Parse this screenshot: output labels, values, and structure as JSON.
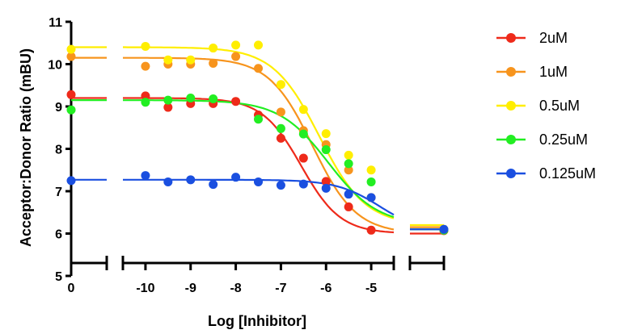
{
  "chart_data": {
    "type": "scatter",
    "xlabel": "Log [Inhibitor]",
    "ylabel": "Acceptor:Donor Ratio (mBU)",
    "ylim": [
      5,
      11
    ],
    "y_ticks": [
      5,
      6,
      7,
      8,
      9,
      10,
      11
    ],
    "x_segments": [
      {
        "xlim": [
          0,
          1
        ],
        "ticks": [
          0
        ],
        "tick_labels": [
          "0"
        ]
      },
      {
        "xlim": [
          -10.5,
          -4.5
        ],
        "ticks": [
          -10,
          -9,
          -8,
          -7,
          -6,
          -5
        ],
        "tick_labels": [
          "-10",
          "-9",
          "-8",
          "-7",
          "-6",
          "-5"
        ]
      },
      {
        "xlim": [
          -4,
          -3
        ],
        "ticks": [],
        "tick_labels": []
      }
    ],
    "legend_position": "right",
    "series": [
      {
        "name": "2uM",
        "color": "#ee2a1a",
        "zero_point": 9.28,
        "points": [
          [
            -10,
            9.25
          ],
          [
            -9.5,
            8.98
          ],
          [
            -9,
            9.07
          ],
          [
            -8.5,
            9.07
          ],
          [
            -8,
            9.12
          ],
          [
            -7.5,
            8.8
          ],
          [
            -7,
            8.25
          ],
          [
            -6.5,
            7.78
          ],
          [
            -6,
            7.23
          ],
          [
            -5.5,
            6.63
          ],
          [
            -5,
            6.08
          ]
        ],
        "excess_point": 6.07,
        "fit": {
          "top": 9.2,
          "bottom": 6.0,
          "logIC50": -6.55,
          "hill": 1.0,
          "plateau": 6.0
        }
      },
      {
        "name": "1uM",
        "color": "#f7941d",
        "zero_point": 10.18,
        "points": [
          [
            -10,
            9.95
          ],
          [
            -9.5,
            10.0
          ],
          [
            -9,
            10.0
          ],
          [
            -8.5,
            10.02
          ],
          [
            -8,
            10.18
          ],
          [
            -7.5,
            9.9
          ],
          [
            -7,
            8.87
          ],
          [
            -6.5,
            8.43
          ],
          [
            -6,
            8.1
          ],
          [
            -5.5,
            7.5
          ],
          [
            -5,
            6.85
          ]
        ],
        "excess_point": 6.08,
        "fit": {
          "top": 10.15,
          "bottom": 6.0,
          "logIC50": -6.3,
          "hill": 0.9,
          "plateau": 6.15
        }
      },
      {
        "name": "0.5uM",
        "color": "#ffee00",
        "zero_point": 10.35,
        "points": [
          [
            -10,
            10.42
          ],
          [
            -9.5,
            10.1
          ],
          [
            -9,
            10.1
          ],
          [
            -8.5,
            10.38
          ],
          [
            -8,
            10.45
          ],
          [
            -7.5,
            10.45
          ],
          [
            -7,
            9.52
          ],
          [
            -6.5,
            8.93
          ],
          [
            -6,
            8.36
          ],
          [
            -5.5,
            7.85
          ],
          [
            -5,
            7.5
          ]
        ],
        "excess_point": 6.1,
        "fit": {
          "top": 10.4,
          "bottom": 6.2,
          "logIC50": -6.15,
          "hill": 0.85,
          "plateau": 6.2
        }
      },
      {
        "name": "0.25uM",
        "color": "#22ee22",
        "zero_point": 8.92,
        "points": [
          [
            -10,
            9.1
          ],
          [
            -9.5,
            9.15
          ],
          [
            -9,
            9.2
          ],
          [
            -8.5,
            9.18
          ],
          [
            -7.5,
            8.7
          ],
          [
            -7,
            8.48
          ],
          [
            -6.5,
            8.35
          ],
          [
            -6,
            7.98
          ],
          [
            -5.5,
            7.65
          ],
          [
            -5,
            7.22
          ]
        ],
        "excess_point": 6.08,
        "fit": {
          "top": 9.15,
          "bottom": 6.2,
          "logIC50": -5.95,
          "hill": 0.8,
          "plateau": 6.1
        }
      },
      {
        "name": "0.125uM",
        "color": "#1a4fe0",
        "zero_point": 7.25,
        "points": [
          [
            -10,
            7.37
          ],
          [
            -9.5,
            7.22
          ],
          [
            -9,
            7.27
          ],
          [
            -8.5,
            7.16
          ],
          [
            -8,
            7.33
          ],
          [
            -7.5,
            7.22
          ],
          [
            -7,
            7.14
          ],
          [
            -6.5,
            7.17
          ],
          [
            -6,
            7.07
          ],
          [
            -5.5,
            6.93
          ],
          [
            -5,
            6.85
          ]
        ],
        "excess_point": 6.1,
        "fit": {
          "top": 7.27,
          "bottom": 6.0,
          "logIC50": -4.8,
          "hill": 0.9,
          "plateau": 6.1
        }
      }
    ]
  }
}
